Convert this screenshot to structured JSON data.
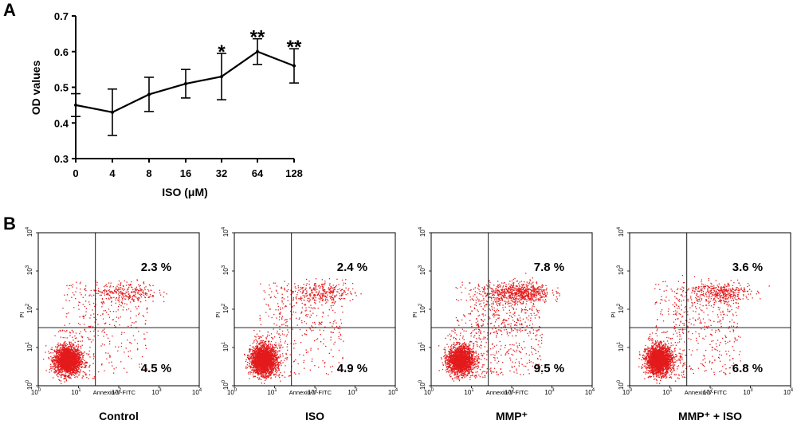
{
  "chart_data": [
    {
      "type": "line",
      "panel_label": "A",
      "xlabel": "ISO (μM)",
      "ylabel": "OD values",
      "categories": [
        "0",
        "4",
        "8",
        "16",
        "32",
        "64",
        "128"
      ],
      "values": [
        0.45,
        0.43,
        0.48,
        0.51,
        0.53,
        0.6,
        0.56
      ],
      "error": [
        0.032,
        0.065,
        0.048,
        0.04,
        0.065,
        0.036,
        0.048
      ],
      "significance": [
        "",
        "",
        "",
        "",
        "*",
        "**",
        "**"
      ],
      "ylim": [
        0.3,
        0.7
      ],
      "yticks": [
        "0.3",
        "0.4",
        "0.5",
        "0.6",
        "0.7"
      ],
      "grid": false,
      "line_color": "#000000"
    },
    {
      "type": "scatter",
      "panel_label": "B",
      "subtype": "flow cytometry dot plots",
      "xlabel": "Annexin-V-FITC",
      "ylabel": "PI",
      "x_scale": "log",
      "y_scale": "log",
      "xlim": [
        1,
        10000
      ],
      "ylim": [
        1,
        10000
      ],
      "tick_base": "10",
      "tick_exponents": [
        "0",
        "1",
        "2",
        "3",
        "4"
      ],
      "point_color": "#e31a1c",
      "panels": [
        {
          "name": "Control",
          "late_apoptosis": "2.3 %",
          "early_apoptosis": "4.5 %"
        },
        {
          "name": "ISO",
          "late_apoptosis": "2.4 %",
          "early_apoptosis": "4.9 %"
        },
        {
          "name": "MMP⁺",
          "late_apoptosis": "7.8 %",
          "early_apoptosis": "9.5 %"
        },
        {
          "name": "MMP⁺ + ISO",
          "late_apoptosis": "3.6 %",
          "early_apoptosis": "6.8 %"
        }
      ]
    }
  ]
}
